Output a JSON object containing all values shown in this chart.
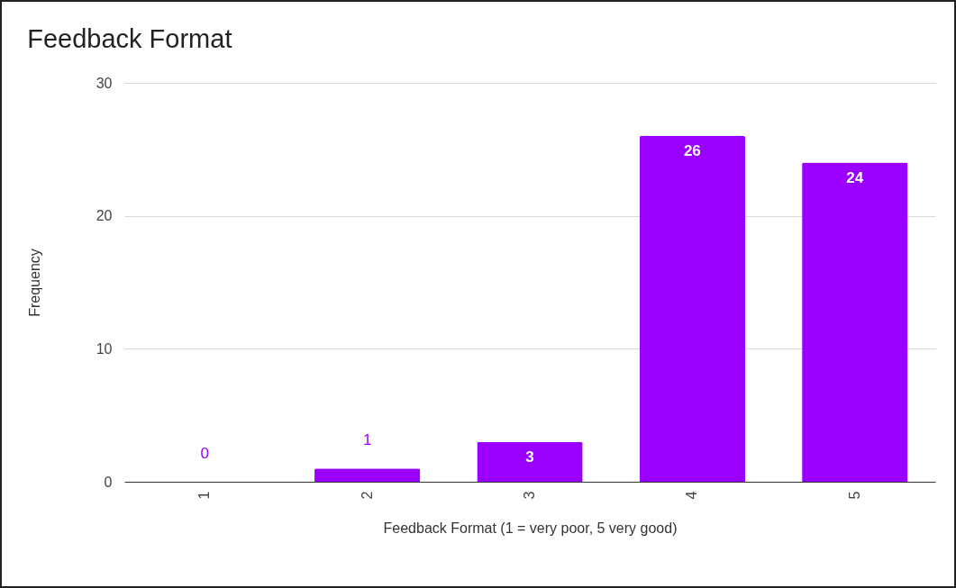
{
  "chart_data": {
    "type": "bar",
    "title": "Feedback Format",
    "xlabel": "Feedback Format (1 = very poor, 5  very good)",
    "ylabel": "Frequency",
    "categories": [
      "1",
      "2",
      "3",
      "4",
      "5"
    ],
    "values": [
      0,
      1,
      3,
      26,
      24
    ],
    "color": "#9900ff",
    "ylim": [
      0,
      30
    ],
    "yticks": [
      0,
      10,
      20,
      30
    ],
    "grid": "y",
    "data_labels": true
  }
}
